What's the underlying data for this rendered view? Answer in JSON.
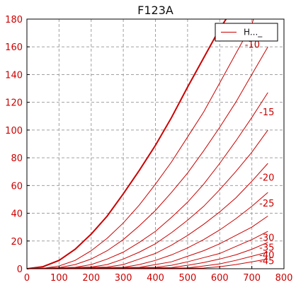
{
  "chart_data": {
    "type": "line",
    "title": "F123A",
    "xlabel": "",
    "ylabel": "",
    "xlim": [
      0,
      800
    ],
    "ylim": [
      0,
      180
    ],
    "x_ticks": [
      0,
      100,
      200,
      300,
      400,
      500,
      600,
      700,
      800
    ],
    "y_ticks": [
      0,
      20,
      40,
      60,
      80,
      100,
      120,
      140,
      160,
      180
    ],
    "grid": true,
    "legend": {
      "label": "H..._",
      "placement": "top-right"
    },
    "colors": {
      "series": "#cc0000",
      "axis": "#000000",
      "grid": "#a0a0a0"
    },
    "series": [
      {
        "label": "",
        "emphasis": true,
        "x": [
          0,
          50,
          100,
          150,
          200,
          250,
          300,
          350,
          400,
          450,
          500,
          550,
          600,
          620
        ],
        "y": [
          0,
          1.5,
          6,
          14,
          25,
          38,
          54,
          71,
          89,
          109,
          131,
          152,
          173,
          180
        ]
      },
      {
        "label": "-10",
        "x": [
          0,
          50,
          100,
          150,
          200,
          250,
          300,
          350,
          400,
          450,
          500,
          550,
          600,
          650,
          700,
          705
        ],
        "y": [
          0,
          0.3,
          2,
          6,
          13,
          22,
          33,
          46,
          61,
          77,
          95,
          113,
          134,
          155,
          176,
          180
        ]
      },
      {
        "label": "",
        "x": [
          0,
          100,
          150,
          200,
          250,
          300,
          350,
          400,
          450,
          500,
          550,
          600,
          650,
          700,
          750
        ],
        "y": [
          0,
          0.8,
          3,
          7,
          13,
          21,
          31,
          42,
          55,
          69,
          85,
          102,
          120,
          140,
          160
        ]
      },
      {
        "label": "-15",
        "x": [
          0,
          150,
          200,
          250,
          300,
          350,
          400,
          450,
          500,
          550,
          600,
          650,
          700,
          750
        ],
        "y": [
          0,
          1,
          3,
          7,
          12,
          19,
          27,
          37,
          48,
          61,
          76,
          92,
          109,
          127
        ]
      },
      {
        "label": "",
        "x": [
          0,
          200,
          250,
          300,
          350,
          400,
          450,
          500,
          550,
          600,
          650,
          700,
          750
        ],
        "y": [
          0,
          1.2,
          3,
          7,
          12,
          18,
          26,
          35,
          45,
          57,
          70,
          84,
          100
        ]
      },
      {
        "label": "-20",
        "x": [
          0,
          250,
          300,
          350,
          400,
          450,
          500,
          550,
          600,
          650,
          700,
          750
        ],
        "y": [
          0,
          1.2,
          3,
          7,
          11,
          17,
          24,
          32,
          41,
          51,
          63,
          76
        ]
      },
      {
        "label": "-25",
        "x": [
          0,
          300,
          350,
          400,
          450,
          500,
          550,
          600,
          650,
          700,
          750
        ],
        "y": [
          0,
          1,
          3,
          6,
          10,
          15,
          21,
          28,
          36,
          45,
          55
        ]
      },
      {
        "label": "",
        "x": [
          0,
          350,
          400,
          450,
          500,
          550,
          600,
          650,
          700,
          750
        ],
        "y": [
          0,
          1,
          3,
          5,
          9,
          13,
          18,
          24,
          30,
          38
        ]
      },
      {
        "label": "-30",
        "x": [
          0,
          400,
          450,
          500,
          550,
          600,
          650,
          700,
          750
        ],
        "y": [
          0,
          1,
          2.5,
          5,
          8,
          11,
          16,
          21,
          27
        ]
      },
      {
        "label": "-35",
        "x": [
          0,
          450,
          500,
          550,
          600,
          650,
          700,
          750
        ],
        "y": [
          0,
          0.8,
          2.5,
          4.5,
          7,
          10,
          14,
          19
        ]
      },
      {
        "label": "-40",
        "x": [
          0,
          500,
          550,
          600,
          650,
          700,
          750
        ],
        "y": [
          0,
          0.6,
          2,
          3.5,
          6,
          9,
          12
        ]
      },
      {
        "label": "-45",
        "x": [
          0,
          550,
          600,
          650,
          700,
          750
        ],
        "y": [
          0,
          0.5,
          1.5,
          3,
          5,
          7
        ]
      }
    ]
  }
}
